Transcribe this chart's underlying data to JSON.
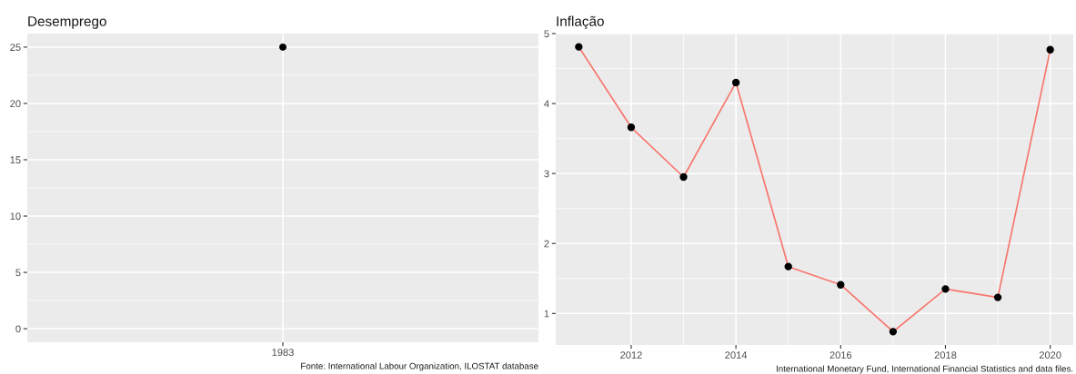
{
  "chart_data": [
    {
      "type": "scatter",
      "title": "Desemprego",
      "categories": [
        "1983"
      ],
      "series": [
        {
          "color": "#000000",
          "values": [
            25
          ]
        }
      ],
      "ylim": [
        -1.2,
        26.2
      ],
      "yticks": [
        0,
        5,
        10,
        15,
        20,
        25
      ],
      "grid": true,
      "marker": "circle",
      "annotations": [
        "Fonte: International Labour Organization, ILOSTAT database"
      ]
    },
    {
      "type": "line",
      "title": "Inflação",
      "x": [
        2011,
        2012,
        2013,
        2014,
        2015,
        2016,
        2017,
        2018,
        2019,
        2020
      ],
      "series": [
        {
          "color": "#f8766d",
          "values": [
            4.81,
            3.66,
            2.95,
            4.3,
            1.67,
            1.41,
            0.74,
            1.35,
            1.23,
            4.77
          ]
        }
      ],
      "xlim": [
        2010.56,
        2020.44
      ],
      "xticks": [
        2012,
        2014,
        2016,
        2018,
        2020
      ],
      "ylim": [
        0.55,
        5.0
      ],
      "yticks": [
        1,
        2,
        3,
        4,
        5
      ],
      "grid": true,
      "marker": "circle",
      "line_style": "solid",
      "annotations": [
        "International Monetary Fund, International Financial Statistics and data files."
      ]
    }
  ]
}
